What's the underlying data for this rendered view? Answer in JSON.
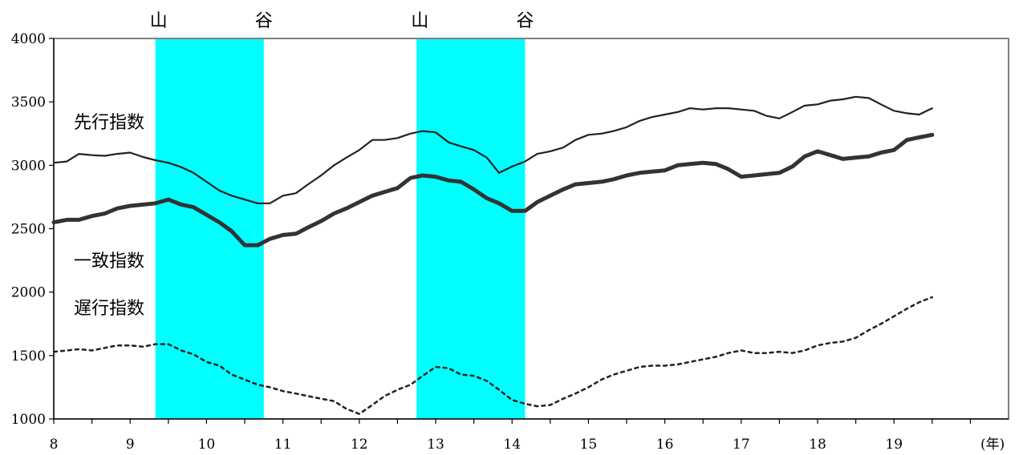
{
  "chart_data": {
    "type": "line",
    "title": "",
    "xlabel": "(年)",
    "ylabel": "",
    "x_ticks": [
      "8",
      "9",
      "10",
      "11",
      "12",
      "13",
      "14",
      "15",
      "16",
      "17",
      "18",
      "19"
    ],
    "y_ticks": [
      "1000",
      "1500",
      "2000",
      "2500",
      "3000",
      "3500",
      "4000"
    ],
    "xlim": [
      8,
      20.5
    ],
    "ylim": [
      1000,
      4000
    ],
    "grid": false,
    "recession_bands": [
      {
        "start": 9.33,
        "end": 10.75,
        "start_label": "山",
        "end_label": "谷",
        "color": "#00FFFF"
      },
      {
        "start": 12.75,
        "end": 14.17,
        "start_label": "山",
        "end_label": "谷",
        "color": "#00FFFF"
      }
    ],
    "series": [
      {
        "name": "先行指数",
        "style": "thin-solid",
        "color": "#222222",
        "x": [
          8.0,
          8.17,
          8.33,
          8.5,
          8.67,
          8.83,
          9.0,
          9.17,
          9.33,
          9.5,
          9.67,
          9.83,
          10.0,
          10.17,
          10.33,
          10.5,
          10.67,
          10.83,
          11.0,
          11.17,
          11.33,
          11.5,
          11.67,
          11.83,
          12.0,
          12.17,
          12.33,
          12.5,
          12.67,
          12.83,
          13.0,
          13.17,
          13.33,
          13.5,
          13.67,
          13.83,
          14.0,
          14.17,
          14.33,
          14.5,
          14.67,
          14.83,
          15.0,
          15.17,
          15.33,
          15.5,
          15.67,
          15.83,
          16.0,
          16.17,
          16.33,
          16.5,
          16.67,
          16.83,
          17.0,
          17.17,
          17.33,
          17.5,
          17.67,
          17.83,
          18.0,
          18.17,
          18.33,
          18.5,
          18.67,
          18.83,
          19.0,
          19.17,
          19.33,
          19.5
        ],
        "values": [
          3020,
          3030,
          3090,
          3080,
          3075,
          3090,
          3100,
          3065,
          3040,
          3020,
          2985,
          2940,
          2870,
          2800,
          2760,
          2730,
          2700,
          2700,
          2760,
          2780,
          2850,
          2920,
          3000,
          3060,
          3120,
          3200,
          3200,
          3215,
          3250,
          3270,
          3260,
          3180,
          3150,
          3120,
          3060,
          2940,
          2990,
          3030,
          3090,
          3110,
          3140,
          3200,
          3240,
          3250,
          3270,
          3300,
          3350,
          3380,
          3400,
          3420,
          3450,
          3440,
          3450,
          3450,
          3440,
          3430,
          3390,
          3370,
          3420,
          3470,
          3480,
          3510,
          3520,
          3540,
          3530,
          3480,
          3430,
          3410,
          3400,
          3450
        ]
      },
      {
        "name": "一致指数",
        "style": "thick-solid",
        "color": "#333333",
        "x": [
          8.0,
          8.17,
          8.33,
          8.5,
          8.67,
          8.83,
          9.0,
          9.17,
          9.33,
          9.5,
          9.67,
          9.83,
          10.0,
          10.17,
          10.33,
          10.5,
          10.67,
          10.83,
          11.0,
          11.17,
          11.33,
          11.5,
          11.67,
          11.83,
          12.0,
          12.17,
          12.33,
          12.5,
          12.67,
          12.83,
          13.0,
          13.17,
          13.33,
          13.5,
          13.67,
          13.83,
          14.0,
          14.17,
          14.33,
          14.5,
          14.67,
          14.83,
          15.0,
          15.17,
          15.33,
          15.5,
          15.67,
          15.83,
          16.0,
          16.17,
          16.33,
          16.5,
          16.67,
          16.83,
          17.0,
          17.17,
          17.33,
          17.5,
          17.67,
          17.83,
          18.0,
          18.17,
          18.33,
          18.5,
          18.67,
          18.83,
          19.0,
          19.17,
          19.33,
          19.5
        ],
        "values": [
          2550,
          2570,
          2570,
          2600,
          2620,
          2660,
          2680,
          2690,
          2700,
          2730,
          2690,
          2670,
          2610,
          2550,
          2480,
          2370,
          2370,
          2420,
          2450,
          2460,
          2510,
          2560,
          2620,
          2660,
          2710,
          2760,
          2790,
          2820,
          2900,
          2920,
          2910,
          2880,
          2870,
          2810,
          2740,
          2700,
          2640,
          2640,
          2710,
          2760,
          2810,
          2850,
          2860,
          2870,
          2890,
          2920,
          2940,
          2950,
          2960,
          3000,
          3010,
          3020,
          3010,
          2970,
          2910,
          2920,
          2930,
          2940,
          2990,
          3070,
          3110,
          3080,
          3050,
          3060,
          3070,
          3100,
          3120,
          3200,
          3220,
          3240
        ]
      },
      {
        "name": "遅行指数",
        "style": "dotted",
        "color": "#222222",
        "x": [
          8.0,
          8.17,
          8.33,
          8.5,
          8.67,
          8.83,
          9.0,
          9.17,
          9.33,
          9.5,
          9.67,
          9.83,
          10.0,
          10.17,
          10.33,
          10.5,
          10.67,
          10.83,
          11.0,
          11.17,
          11.33,
          11.5,
          11.67,
          11.83,
          12.0,
          12.17,
          12.33,
          12.5,
          12.67,
          12.83,
          13.0,
          13.17,
          13.33,
          13.5,
          13.67,
          13.83,
          14.0,
          14.17,
          14.33,
          14.5,
          14.67,
          14.83,
          15.0,
          15.17,
          15.33,
          15.5,
          15.67,
          15.83,
          16.0,
          16.17,
          16.33,
          16.5,
          16.67,
          16.83,
          17.0,
          17.17,
          17.33,
          17.5,
          17.67,
          17.83,
          18.0,
          18.17,
          18.33,
          18.5,
          18.67,
          18.83,
          19.0,
          19.17,
          19.33,
          19.5
        ],
        "values": [
          1530,
          1540,
          1550,
          1540,
          1560,
          1580,
          1580,
          1570,
          1590,
          1590,
          1540,
          1510,
          1450,
          1420,
          1350,
          1310,
          1270,
          1250,
          1220,
          1200,
          1180,
          1160,
          1140,
          1080,
          1040,
          1110,
          1180,
          1230,
          1270,
          1340,
          1410,
          1400,
          1350,
          1340,
          1300,
          1230,
          1150,
          1120,
          1100,
          1110,
          1160,
          1200,
          1250,
          1310,
          1350,
          1380,
          1410,
          1420,
          1420,
          1430,
          1450,
          1470,
          1490,
          1520,
          1540,
          1520,
          1520,
          1530,
          1520,
          1540,
          1580,
          1600,
          1610,
          1640,
          1700,
          1750,
          1810,
          1870,
          1920,
          1960
        ]
      }
    ]
  }
}
